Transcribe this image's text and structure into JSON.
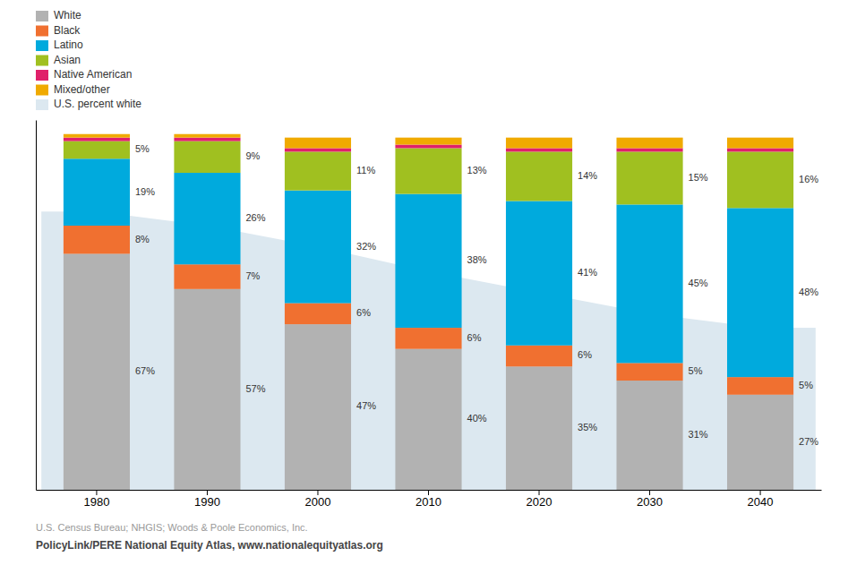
{
  "chart_data": {
    "type": "bar",
    "stacked": true,
    "data_labels": true,
    "grid": false,
    "legend": "upper left",
    "tick_labels": "x",
    "categories": [
      "1980",
      "1990",
      "2000",
      "2010",
      "2020",
      "2030",
      "2040"
    ],
    "ylim": [
      0,
      105
    ],
    "series": [
      {
        "name": "White",
        "color": "#b2b2b2",
        "values": [
          67,
          57,
          47,
          40,
          35,
          31,
          27
        ],
        "value_labels": [
          "67%",
          "57%",
          "47%",
          "40%",
          "35%",
          "31%",
          "27%"
        ]
      },
      {
        "name": "Black",
        "color": "#f07030",
        "values": [
          8,
          7,
          6,
          6,
          6,
          5,
          5
        ],
        "value_labels": [
          "8%",
          "7%",
          "6%",
          "6%",
          "6%",
          "5%",
          "5%"
        ]
      },
      {
        "name": "Latino",
        "color": "#00aadd",
        "values": [
          19,
          26,
          32,
          38,
          41,
          45,
          48
        ],
        "value_labels": [
          "19%",
          "26%",
          "32%",
          "38%",
          "41%",
          "45%",
          "48%"
        ]
      },
      {
        "name": "Asian",
        "color": "#a0c020",
        "values": [
          5,
          9,
          11,
          13,
          14,
          15,
          16
        ],
        "value_labels": [
          "5%",
          "9%",
          "11%",
          "13%",
          "14%",
          "15%",
          "16%"
        ]
      },
      {
        "name": "Native American",
        "color": "#e0206a",
        "values": [
          1,
          1,
          1,
          1,
          1,
          1,
          1
        ]
      },
      {
        "name": "Mixed/other",
        "color": "#f0aa00",
        "values": [
          1,
          1,
          3,
          2,
          3,
          3,
          3
        ]
      },
      {
        "name": "U.S. percent white",
        "type": "area",
        "color": "#dce8f0",
        "values": [
          79,
          75,
          69,
          62,
          56,
          50,
          46
        ]
      }
    ],
    "annotations": [
      "U.S. Census Bureau; NHGIS; Woods & Poole Economics, Inc.",
      "PolicyLink/PERE National Equity Atlas, www.nationalequityatlas.org"
    ]
  }
}
